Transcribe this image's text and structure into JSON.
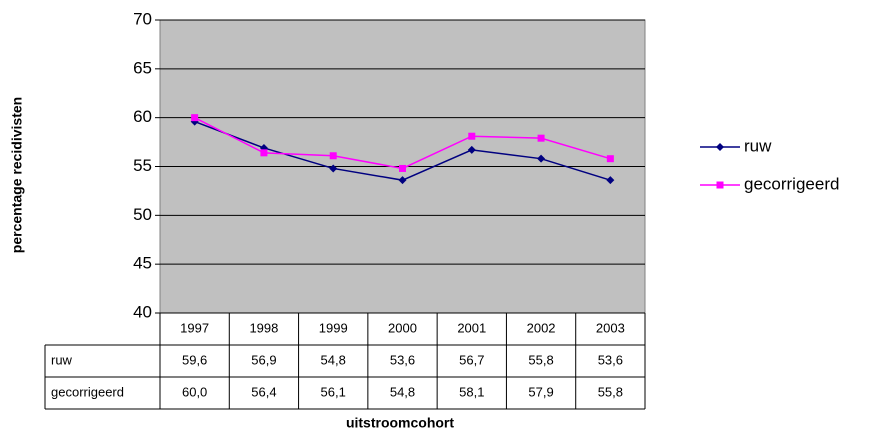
{
  "chart_data": {
    "type": "line",
    "x_label": "uitstroomcohort",
    "y_label": "percentage recidivisten",
    "categories": [
      "1997",
      "1998",
      "1999",
      "2000",
      "2001",
      "2002",
      "2003"
    ],
    "series": [
      {
        "name": "ruw",
        "color": "#000080",
        "marker": "diamond",
        "values": [
          59.6,
          56.9,
          54.8,
          53.6,
          56.7,
          55.8,
          53.6
        ],
        "value_labels": [
          "59,6",
          "56,9",
          "54,8",
          "53,6",
          "56,7",
          "55,8",
          "53,6"
        ]
      },
      {
        "name": "gecorrigeerd",
        "color": "#ff00ff",
        "marker": "square",
        "values": [
          60.0,
          56.4,
          56.1,
          54.8,
          58.1,
          57.9,
          55.8
        ],
        "value_labels": [
          "60,0",
          "56,4",
          "56,1",
          "54,8",
          "58,1",
          "57,9",
          "55,8"
        ]
      }
    ],
    "ylim": [
      40,
      70
    ],
    "yticks": [
      40,
      45,
      50,
      55,
      60,
      65,
      70
    ],
    "grid": true,
    "plot_background": "#c0c0c0",
    "legend": "right"
  }
}
